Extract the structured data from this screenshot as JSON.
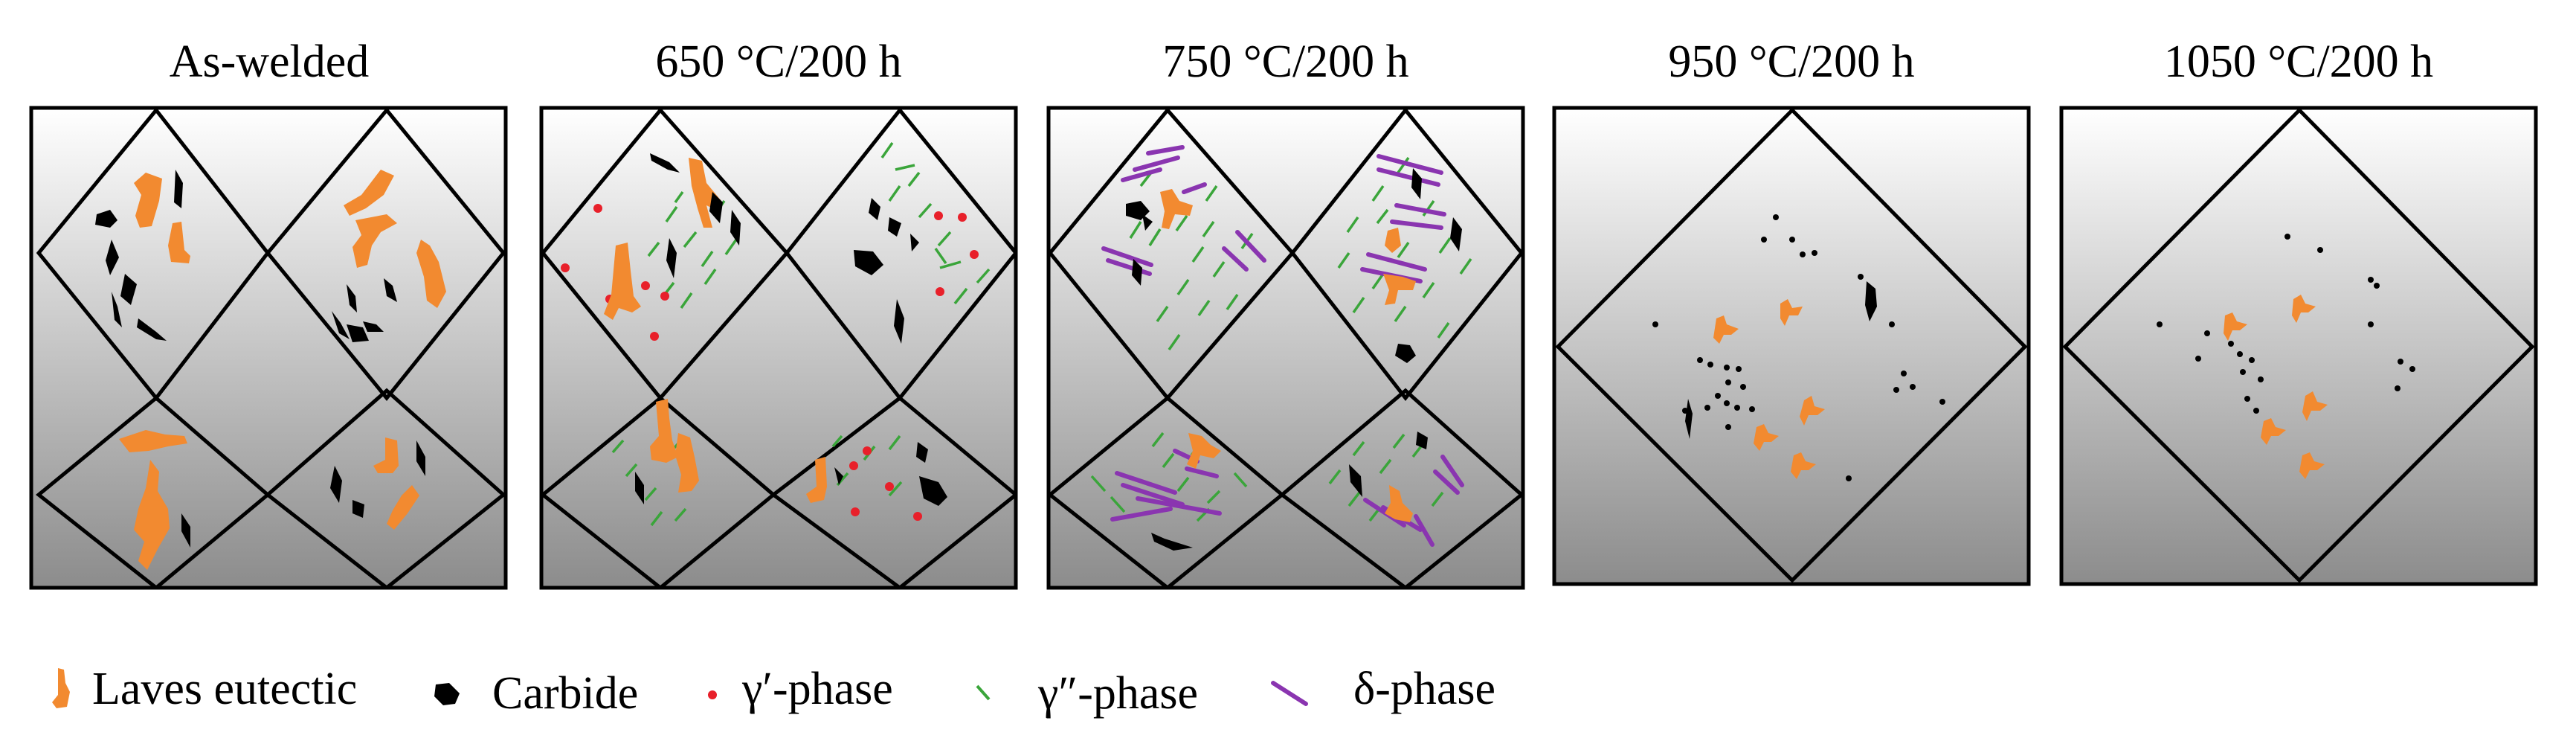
{
  "panels": [
    {
      "title": "As-welded",
      "layout": "grains",
      "phases": [
        "laves-eutectic",
        "carbide"
      ]
    },
    {
      "title": "650 °C/200 h",
      "layout": "grains",
      "phases": [
        "laves-eutectic",
        "carbide",
        "gamma-prime-phase",
        "gamma-double-prime-phase"
      ]
    },
    {
      "title": "750 °C/200 h",
      "layout": "grains",
      "phases": [
        "laves-eutectic",
        "carbide",
        "gamma-double-prime-phase",
        "delta-phase"
      ]
    },
    {
      "title": "950 °C/200 h",
      "layout": "single-grain",
      "phases": [
        "laves-eutectic",
        "carbide"
      ]
    },
    {
      "title": "1050 °C/200 h",
      "layout": "single-grain",
      "phases": [
        "laves-eutectic",
        "carbide"
      ]
    }
  ],
  "legend": [
    {
      "label": "Laves eutectic",
      "icon": "laves-eutectic-icon"
    },
    {
      "label": "Carbide",
      "icon": "carbide-icon"
    },
    {
      "label": "γ′-phase",
      "icon": "gamma-prime-icon"
    },
    {
      "label": "γ″-phase",
      "icon": "gamma-double-prime-icon"
    },
    {
      "label": "δ-phase",
      "icon": "delta-phase-icon"
    }
  ],
  "colors": {
    "laves": "#f28a30",
    "carbide": "#000000",
    "gamma_prime": "#e8202a",
    "gamma_double_prime": "#3aa53a",
    "delta": "#8a35b0",
    "background_top": "#ffffff",
    "background_bottom": "#8c8c8c"
  }
}
